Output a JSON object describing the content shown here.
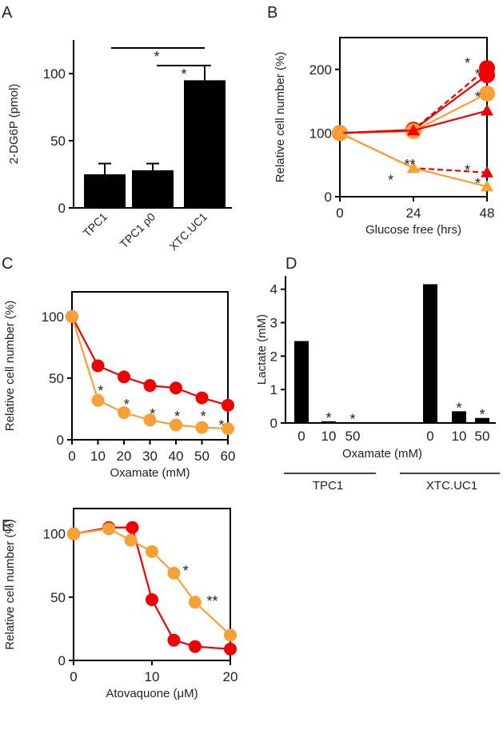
{
  "colors": {
    "red": "#f20000",
    "orange": "#f7a035",
    "black": "#000000",
    "grey": "#333333"
  },
  "chart_data": [
    {
      "id": "A",
      "panel_label": "A",
      "type": "bar",
      "ylabel": "2-DG6P  (pmol)",
      "xlabel": "",
      "ylim": [
        0,
        125
      ],
      "yticks": [
        0,
        50,
        100
      ],
      "categories": [
        "TPC1",
        "TPC1 ρ0",
        "XTC.UC1"
      ],
      "values": [
        25,
        28,
        95
      ],
      "errors": [
        8,
        5,
        11
      ],
      "significance": [
        {
          "from": 0,
          "to": 2,
          "label": "*"
        },
        {
          "from": 1,
          "to": 2,
          "label": "*"
        }
      ]
    },
    {
      "id": "B",
      "panel_label": "B",
      "type": "line",
      "ylabel": "Relative cell number (%)",
      "xlabel": "Glucose free (hrs)",
      "xlim": [
        0,
        48
      ],
      "ylim": [
        0,
        250
      ],
      "xticks": [
        0,
        24,
        48
      ],
      "yticks": [
        0,
        100,
        200
      ],
      "x": [
        0,
        24,
        48
      ],
      "series": [
        {
          "name": "red-circle-dashed",
          "color": "#f20000",
          "marker": "circle",
          "dashed": true,
          "values": [
            100,
            105,
            202
          ]
        },
        {
          "name": "red-circle-solid",
          "color": "#f20000",
          "marker": "circle",
          "dashed": false,
          "values": [
            100,
            105,
            191
          ]
        },
        {
          "name": "orange-circle",
          "color": "#f7a035",
          "marker": "circle",
          "dashed": false,
          "values": [
            100,
            103,
            162
          ]
        },
        {
          "name": "red-triangle-solid",
          "color": "#f20000",
          "marker": "triangle",
          "dashed": false,
          "values": [
            100,
            104,
            135
          ]
        },
        {
          "name": "red-triangle-dashed",
          "color": "#f20000",
          "marker": "triangle",
          "dashed": true,
          "values": [
            100,
            45,
            38
          ]
        },
        {
          "name": "orange-triangle",
          "color": "#f7a035",
          "marker": "triangle",
          "dashed": false,
          "values": [
            100,
            45,
            16
          ]
        }
      ],
      "annotations": [
        {
          "x": 45,
          "y": 212,
          "text": "*"
        },
        {
          "x": 45,
          "y": 195,
          "text": "*"
        },
        {
          "x": 45,
          "y": 159,
          "text": "*"
        },
        {
          "x": 21,
          "y": 53,
          "text": "**"
        },
        {
          "x": 20,
          "y": 28,
          "text": "*"
        },
        {
          "x": 45,
          "y": 44,
          "text": "*"
        },
        {
          "x": 45,
          "y": 23,
          "text": "*"
        }
      ]
    },
    {
      "id": "C",
      "panel_label": "C",
      "type": "line",
      "ylabel": "Relative cell number (%)",
      "xlabel": "Oxamate (mM)",
      "xlim": [
        0,
        60
      ],
      "ylim": [
        0,
        120
      ],
      "xticks": [
        0,
        10,
        20,
        30,
        40,
        50,
        60
      ],
      "yticks": [
        0,
        50,
        100
      ],
      "x": [
        0,
        10,
        20,
        30,
        40,
        50,
        60
      ],
      "series": [
        {
          "name": "red",
          "color": "#f20000",
          "marker": "circle",
          "dashed": false,
          "values": [
            100,
            60,
            51,
            44,
            42,
            34,
            28
          ]
        },
        {
          "name": "orange",
          "color": "#f7a035",
          "marker": "circle",
          "dashed": false,
          "values": [
            100,
            32,
            22,
            16,
            12,
            10,
            9
          ]
        }
      ],
      "annotations": [
        {
          "x": 11,
          "y": 41,
          "text": "*"
        },
        {
          "x": 21,
          "y": 30,
          "text": "*"
        },
        {
          "x": 31,
          "y": 22,
          "text": "*"
        },
        {
          "x": 40.5,
          "y": 20,
          "text": "*"
        },
        {
          "x": 50.5,
          "y": 20,
          "text": "*"
        },
        {
          "x": 57.5,
          "y": 13,
          "text": "*"
        }
      ]
    },
    {
      "id": "D",
      "panel_label": "D",
      "type": "bar",
      "ylabel": "Lactate (mM)",
      "xlabel": "Oxamate (mM)",
      "ylim": [
        0,
        4.4
      ],
      "yticks": [
        0,
        1,
        2,
        3,
        4
      ],
      "groups": [
        {
          "name": "TPC1",
          "categories": [
            "0",
            "10",
            "50"
          ],
          "values": [
            2.45,
            0.05,
            0.01
          ],
          "stars": [
            "",
            "*",
            "*"
          ]
        },
        {
          "name": "XTC.UC1",
          "categories": [
            "0",
            "10",
            "50"
          ],
          "values": [
            4.15,
            0.35,
            0.15
          ],
          "stars": [
            "",
            "*",
            "*"
          ]
        }
      ]
    },
    {
      "id": "E",
      "panel_label": "E",
      "type": "line",
      "ylabel": "Relative cell number (%)",
      "xlabel": "Atovaquone (μM)",
      "xlim": [
        0,
        20
      ],
      "ylim": [
        0,
        120
      ],
      "xticks": [
        0,
        10,
        20
      ],
      "yticks": [
        0,
        50,
        100
      ],
      "series": [
        {
          "name": "red",
          "color": "#f20000",
          "marker": "circle",
          "dashed": false,
          "x": [
            0,
            4.5,
            7.5,
            10,
            12.8,
            15.5,
            20
          ],
          "values": [
            100,
            105,
            105,
            48,
            16,
            11,
            9
          ]
        },
        {
          "name": "orange",
          "color": "#f7a035",
          "marker": "circle",
          "dashed": false,
          "x": [
            0,
            4.5,
            7.3,
            10,
            12.8,
            15.5,
            20
          ],
          "values": [
            100,
            104,
            95,
            86,
            69,
            46,
            20
          ]
        }
      ],
      "annotations": [
        {
          "x": 14.3,
          "y": 72,
          "text": "*"
        },
        {
          "x": 17.7,
          "y": 48,
          "text": "**"
        }
      ]
    }
  ]
}
